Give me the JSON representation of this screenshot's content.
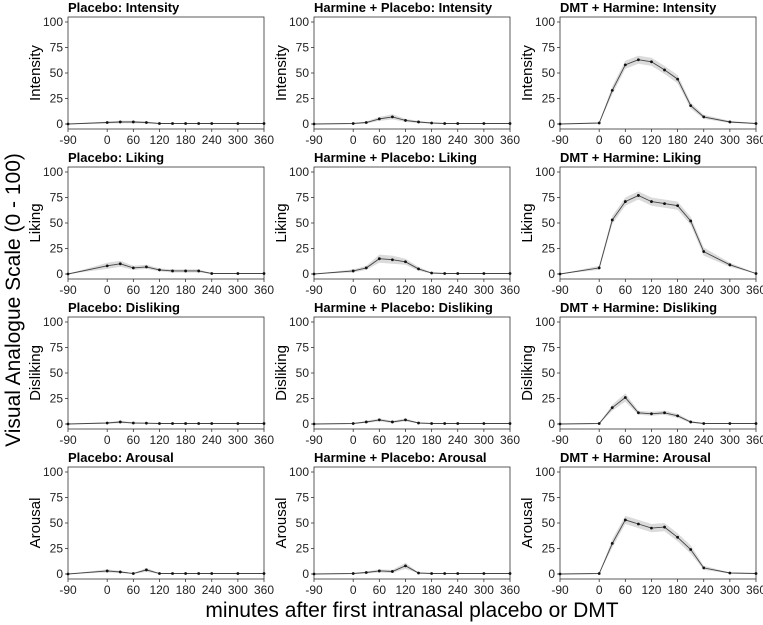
{
  "figure": {
    "ylabel": "Visual Analogue Scale (0 - 100)",
    "xlabel": "minutes after first intranasal placebo or DMT"
  },
  "chart_data": [
    {
      "type": "line",
      "title": "Placebo: Intensity",
      "ylabel": "Intensity",
      "x": [
        -90,
        0,
        30,
        60,
        90,
        120,
        150,
        180,
        210,
        240,
        300,
        360
      ],
      "values": [
        0,
        1.5,
        2,
        2,
        1.5,
        0.5,
        0.5,
        0.5,
        0.5,
        0.5,
        0.5,
        0.5
      ],
      "lower": [
        0,
        0.5,
        0.8,
        0.8,
        0.6,
        0.2,
        0.2,
        0.2,
        0.2,
        0.2,
        0.2,
        0.2
      ],
      "upper": [
        0,
        2.5,
        3.2,
        3.2,
        2.5,
        0.8,
        0.8,
        0.8,
        0.8,
        0.8,
        0.8,
        0.8
      ],
      "xticks": [
        -90,
        0,
        60,
        120,
        180,
        240,
        300,
        360
      ],
      "yticks": [
        0,
        25,
        50,
        75,
        100
      ],
      "ylim": [
        0,
        100
      ],
      "xlim": [
        -90,
        360
      ]
    },
    {
      "type": "line",
      "title": "Harmine + Placebo: Intensity",
      "ylabel": "Intensity",
      "x": [
        -90,
        0,
        30,
        60,
        90,
        120,
        150,
        180,
        210,
        240,
        300,
        360
      ],
      "values": [
        0,
        0.5,
        1.5,
        5,
        7,
        3.5,
        2,
        1,
        0.5,
        0.5,
        0.5,
        0.5
      ],
      "lower": [
        0,
        0.2,
        0.5,
        3,
        4.5,
        2,
        1,
        0.5,
        0.2,
        0.2,
        0.2,
        0.2
      ],
      "upper": [
        0,
        0.8,
        2.5,
        7,
        9.5,
        5,
        3,
        1.5,
        0.8,
        0.8,
        0.8,
        0.8
      ],
      "xticks": [
        -90,
        0,
        60,
        120,
        180,
        240,
        300,
        360
      ],
      "yticks": [
        0,
        25,
        50,
        75,
        100
      ],
      "ylim": [
        0,
        100
      ],
      "xlim": [
        -90,
        360
      ]
    },
    {
      "type": "line",
      "title": "DMT + Harmine: Intensity",
      "ylabel": "Intensity",
      "x": [
        -90,
        0,
        30,
        60,
        90,
        120,
        150,
        180,
        210,
        240,
        300,
        360
      ],
      "values": [
        0,
        1,
        33,
        58,
        63,
        61,
        53,
        44,
        18,
        7,
        2,
        0.5
      ],
      "lower": [
        0,
        0.5,
        29,
        54,
        59,
        57,
        49,
        40,
        15,
        5,
        1,
        0.2
      ],
      "upper": [
        0,
        1.5,
        37,
        62,
        67,
        65,
        57,
        48,
        21,
        9,
        3,
        0.8
      ],
      "xticks": [
        -90,
        0,
        60,
        120,
        180,
        240,
        300,
        360
      ],
      "yticks": [
        0,
        25,
        50,
        75,
        100
      ],
      "ylim": [
        0,
        100
      ],
      "xlim": [
        -90,
        360
      ]
    },
    {
      "type": "line",
      "title": "Placebo: Liking",
      "ylabel": "Liking",
      "x": [
        -90,
        0,
        30,
        60,
        90,
        120,
        150,
        180,
        210,
        240,
        300,
        360
      ],
      "values": [
        0,
        8,
        10,
        6,
        7,
        4,
        3,
        3,
        3,
        0.5,
        0.5,
        0.5
      ],
      "lower": [
        0,
        5,
        7,
        4,
        5,
        2.5,
        1.5,
        1.5,
        1.5,
        0.2,
        0.2,
        0.2
      ],
      "upper": [
        0,
        11,
        13,
        8,
        9,
        5.5,
        4.5,
        4.5,
        4.5,
        0.8,
        0.8,
        0.8
      ],
      "xticks": [
        -90,
        0,
        60,
        120,
        180,
        240,
        300,
        360
      ],
      "yticks": [
        0,
        25,
        50,
        75,
        100
      ],
      "ylim": [
        0,
        100
      ],
      "xlim": [
        -90,
        360
      ]
    },
    {
      "type": "line",
      "title": "Harmine + Placebo: Liking",
      "ylabel": "Liking",
      "x": [
        -90,
        0,
        30,
        60,
        90,
        120,
        150,
        180,
        210,
        240,
        300,
        360
      ],
      "values": [
        0,
        3,
        6,
        15,
        14,
        12,
        5,
        1,
        0.5,
        0.5,
        0.5,
        0.5
      ],
      "lower": [
        0,
        1.5,
        4,
        11,
        10,
        9,
        3,
        0.5,
        0.2,
        0.2,
        0.2,
        0.2
      ],
      "upper": [
        0,
        4.5,
        8,
        19,
        18,
        15,
        7,
        1.5,
        0.8,
        0.8,
        0.8,
        0.8
      ],
      "xticks": [
        -90,
        0,
        60,
        120,
        180,
        240,
        300,
        360
      ],
      "yticks": [
        0,
        25,
        50,
        75,
        100
      ],
      "ylim": [
        0,
        100
      ],
      "xlim": [
        -90,
        360
      ]
    },
    {
      "type": "line",
      "title": "DMT + Harmine: Liking",
      "ylabel": "Liking",
      "x": [
        -90,
        0,
        30,
        60,
        90,
        120,
        150,
        180,
        210,
        240,
        300,
        360
      ],
      "values": [
        0,
        6,
        53,
        71,
        77,
        71,
        69,
        67,
        52,
        22,
        9,
        0.5
      ],
      "lower": [
        0,
        4,
        49,
        67,
        73,
        67,
        65,
        63,
        48,
        18,
        7,
        0.2
      ],
      "upper": [
        0,
        8,
        57,
        75,
        81,
        75,
        73,
        71,
        56,
        26,
        11,
        0.8
      ],
      "xticks": [
        -90,
        0,
        60,
        120,
        180,
        240,
        300,
        360
      ],
      "yticks": [
        0,
        25,
        50,
        75,
        100
      ],
      "ylim": [
        0,
        100
      ],
      "xlim": [
        -90,
        360
      ]
    },
    {
      "type": "line",
      "title": "Placebo: Disliking",
      "ylabel": "Disliking",
      "x": [
        -90,
        0,
        30,
        60,
        90,
        120,
        150,
        180,
        210,
        240,
        300,
        360
      ],
      "values": [
        0,
        1,
        2,
        1,
        0.8,
        0.5,
        0.5,
        0.5,
        0.5,
        0.5,
        0.5,
        0.5
      ],
      "lower": [
        0,
        0.4,
        0.8,
        0.4,
        0.3,
        0.2,
        0.2,
        0.2,
        0.2,
        0.2,
        0.2,
        0.2
      ],
      "upper": [
        0,
        1.6,
        3.2,
        1.6,
        1.3,
        0.8,
        0.8,
        0.8,
        0.8,
        0.8,
        0.8,
        0.8
      ],
      "xticks": [
        -90,
        0,
        60,
        120,
        180,
        240,
        300,
        360
      ],
      "yticks": [
        0,
        25,
        50,
        75,
        100
      ],
      "ylim": [
        0,
        100
      ],
      "xlim": [
        -90,
        360
      ]
    },
    {
      "type": "line",
      "title": "Harmine + Placebo: Disliking",
      "ylabel": "Disliking",
      "x": [
        -90,
        0,
        30,
        60,
        90,
        120,
        150,
        180,
        210,
        240,
        300,
        360
      ],
      "values": [
        0,
        0.5,
        2,
        4,
        2,
        4,
        1,
        0.5,
        0.5,
        0.5,
        0.5,
        0.5
      ],
      "lower": [
        0,
        0.2,
        1,
        2.5,
        1,
        2.5,
        0.5,
        0.2,
        0.2,
        0.2,
        0.2,
        0.2
      ],
      "upper": [
        0,
        0.8,
        3,
        5.5,
        3,
        5.5,
        1.5,
        0.8,
        0.8,
        0.8,
        0.8,
        0.8
      ],
      "xticks": [
        -90,
        0,
        60,
        120,
        180,
        240,
        300,
        360
      ],
      "yticks": [
        0,
        25,
        50,
        75,
        100
      ],
      "ylim": [
        0,
        100
      ],
      "xlim": [
        -90,
        360
      ]
    },
    {
      "type": "line",
      "title": "DMT + Harmine: Disliking",
      "ylabel": "Disliking",
      "x": [
        -90,
        0,
        30,
        60,
        90,
        120,
        150,
        180,
        210,
        240,
        300,
        360
      ],
      "values": [
        0,
        0.5,
        16,
        26,
        11,
        10,
        11,
        8,
        2,
        0.5,
        0.5,
        0.5
      ],
      "lower": [
        0,
        0.2,
        13,
        22,
        9,
        8,
        9,
        6,
        1,
        0.2,
        0.2,
        0.2
      ],
      "upper": [
        0,
        0.8,
        19,
        30,
        13,
        12,
        13,
        10,
        3,
        0.8,
        0.8,
        0.8
      ],
      "xticks": [
        -90,
        0,
        60,
        120,
        180,
        240,
        300,
        360
      ],
      "yticks": [
        0,
        25,
        50,
        75,
        100
      ],
      "ylim": [
        0,
        100
      ],
      "xlim": [
        -90,
        360
      ]
    },
    {
      "type": "line",
      "title": "Placebo: Arousal",
      "ylabel": "Arousal",
      "x": [
        -90,
        0,
        30,
        60,
        90,
        120,
        150,
        180,
        210,
        240,
        300,
        360
      ],
      "values": [
        0,
        3,
        2,
        0.5,
        4,
        0.5,
        0.5,
        0.5,
        0.5,
        0.5,
        0.5,
        0.5
      ],
      "lower": [
        0,
        1.5,
        1,
        0.2,
        2,
        0.2,
        0.2,
        0.2,
        0.2,
        0.2,
        0.2,
        0.2
      ],
      "upper": [
        0,
        4.5,
        3,
        0.8,
        6,
        0.8,
        0.8,
        0.8,
        0.8,
        0.8,
        0.8,
        0.8
      ],
      "xticks": [
        -90,
        0,
        60,
        120,
        180,
        240,
        300,
        360
      ],
      "yticks": [
        0,
        25,
        50,
        75,
        100
      ],
      "ylim": [
        0,
        100
      ],
      "xlim": [
        -90,
        360
      ]
    },
    {
      "type": "line",
      "title": "Harmine + Placebo: Arousal",
      "ylabel": "Arousal",
      "x": [
        -90,
        0,
        30,
        60,
        90,
        120,
        150,
        180,
        210,
        240,
        300,
        360
      ],
      "values": [
        0,
        0.5,
        1.5,
        3,
        2.5,
        8,
        1,
        0.5,
        0.5,
        0.5,
        0.5,
        0.5
      ],
      "lower": [
        0,
        0.2,
        0.5,
        1.5,
        1,
        5,
        0.5,
        0.2,
        0.2,
        0.2,
        0.2,
        0.2
      ],
      "upper": [
        0,
        0.8,
        2.5,
        4.5,
        4,
        11,
        1.5,
        0.8,
        0.8,
        0.8,
        0.8,
        0.8
      ],
      "xticks": [
        -90,
        0,
        60,
        120,
        180,
        240,
        300,
        360
      ],
      "yticks": [
        0,
        25,
        50,
        75,
        100
      ],
      "ylim": [
        0,
        100
      ],
      "xlim": [
        -90,
        360
      ]
    },
    {
      "type": "line",
      "title": "DMT + Harmine: Arousal",
      "ylabel": "Arousal",
      "x": [
        -90,
        0,
        30,
        60,
        90,
        120,
        150,
        180,
        210,
        240,
        300,
        360
      ],
      "values": [
        0,
        0.5,
        30,
        53,
        49,
        45,
        46,
        36,
        24,
        6,
        1,
        0.5
      ],
      "lower": [
        0,
        0.2,
        26,
        49,
        45,
        41,
        42,
        32,
        20,
        4,
        0.5,
        0.2
      ],
      "upper": [
        0,
        0.8,
        34,
        57,
        53,
        49,
        50,
        40,
        28,
        8,
        1.5,
        0.8
      ],
      "xticks": [
        -90,
        0,
        60,
        120,
        180,
        240,
        300,
        360
      ],
      "yticks": [
        0,
        25,
        50,
        75,
        100
      ],
      "ylim": [
        0,
        100
      ],
      "xlim": [
        -90,
        360
      ]
    }
  ]
}
